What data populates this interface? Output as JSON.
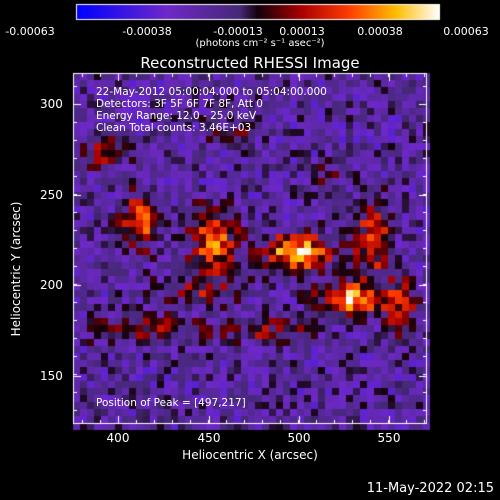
{
  "colorbar": {
    "ticks": [
      "-0.00063",
      "-0.00038",
      "-0.00013",
      "0.00013",
      "0.00038",
      "0.00063"
    ],
    "unit_label": "(photons cm⁻² s⁻¹ asec⁻²)"
  },
  "plot": {
    "title": "Reconstructed RHESSI Image",
    "info_lines": [
      "22-May-2012 05:00:04.000 to 05:04:00.000",
      "Detectors: 3F 5F 6F 7F 8F, Att 0",
      "Energy Range: 12.0 - 25.0 keV",
      "Clean     Total counts: 3.46E+03"
    ],
    "peak_label": "Position of Peak = [497,217]",
    "xlabel": "Heliocentric X (arcsec)",
    "ylabel": "Heliocentric Y (arcsec)",
    "xticks": [
      "400",
      "450",
      "500",
      "550"
    ],
    "yticks": [
      "300",
      "250",
      "200",
      "150"
    ],
    "xlim": [
      375,
      570
    ],
    "ylim": [
      120,
      320
    ]
  },
  "timestamp": "11-May-2022 02:15"
}
